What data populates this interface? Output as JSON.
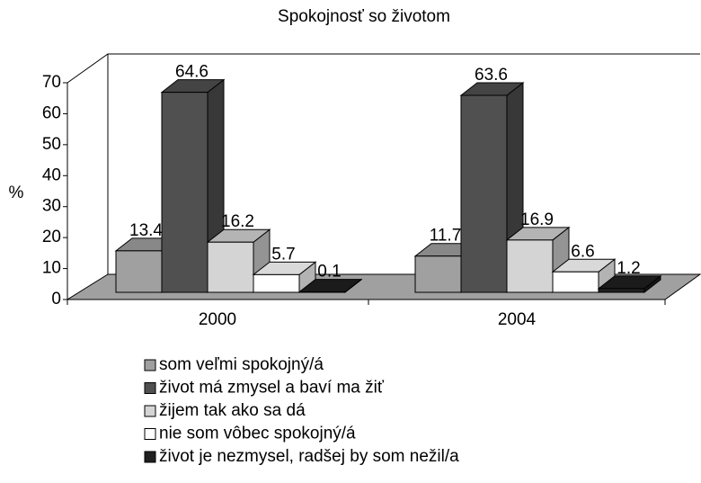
{
  "chart_data": {
    "type": "bar3d",
    "title": "Spokojnosť so životom",
    "y_label": "%",
    "categories": [
      "2000",
      "2004"
    ],
    "series": [
      {
        "name": "som veľmi spokojný/á",
        "color": "#a0a0a0",
        "values": [
          13.4,
          11.7
        ]
      },
      {
        "name": "život má zmysel a baví ma žiť",
        "color": "#505050",
        "values": [
          64.6,
          63.6
        ]
      },
      {
        "name": "žijem tak ako sa dá",
        "color": "#d4d4d4",
        "values": [
          16.2,
          16.9
        ]
      },
      {
        "name": "nie som vôbec spokojný/á",
        "color": "#ffffff",
        "values": [
          5.7,
          6.6
        ]
      },
      {
        "name": "život je nezmysel, radšej by som nežil/a",
        "color": "#202020",
        "values": [
          0.1,
          1.2
        ]
      }
    ],
    "ylim": [
      0,
      70
    ],
    "yticks": [
      0,
      10,
      20,
      30,
      40,
      50,
      60,
      70
    ],
    "grid": false
  }
}
